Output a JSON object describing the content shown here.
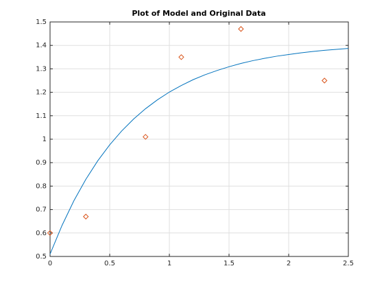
{
  "chart_data": {
    "type": "combo",
    "title": "Plot of Model and Original Data",
    "xlim": [
      0,
      2.5
    ],
    "xticks": [
      0,
      0.5,
      1,
      1.5,
      2,
      2.5
    ],
    "ylim": [
      0.5,
      1.5
    ],
    "yticks": [
      0.5,
      0.6,
      0.7,
      0.8,
      0.9,
      1,
      1.1,
      1.2,
      1.3,
      1.4,
      1.5
    ],
    "grid": true,
    "series": [
      {
        "type": "line",
        "color": "#0072bd",
        "x": [
          0,
          0.1,
          0.2,
          0.3,
          0.4,
          0.5,
          0.6,
          0.7,
          0.8,
          0.9,
          1,
          1.1,
          1.2,
          1.3,
          1.4,
          1.5,
          1.6,
          1.7,
          1.8,
          1.9,
          2,
          2.1,
          2.2,
          2.3,
          2.4,
          2.5
        ],
        "values": [
          0.51,
          0.632,
          0.738,
          0.829,
          0.908,
          0.976,
          1.035,
          1.086,
          1.13,
          1.168,
          1.201,
          1.229,
          1.254,
          1.275,
          1.293,
          1.309,
          1.323,
          1.335,
          1.345,
          1.354,
          1.361,
          1.368,
          1.374,
          1.379,
          1.383,
          1.387
        ]
      },
      {
        "type": "scatter",
        "color": "#d95319",
        "marker": "diamond",
        "x": [
          0,
          0.3,
          0.8,
          1.1,
          1.6,
          2.3
        ],
        "values": [
          0.6,
          0.67,
          1.01,
          1.35,
          1.47,
          1.25
        ]
      }
    ]
  }
}
